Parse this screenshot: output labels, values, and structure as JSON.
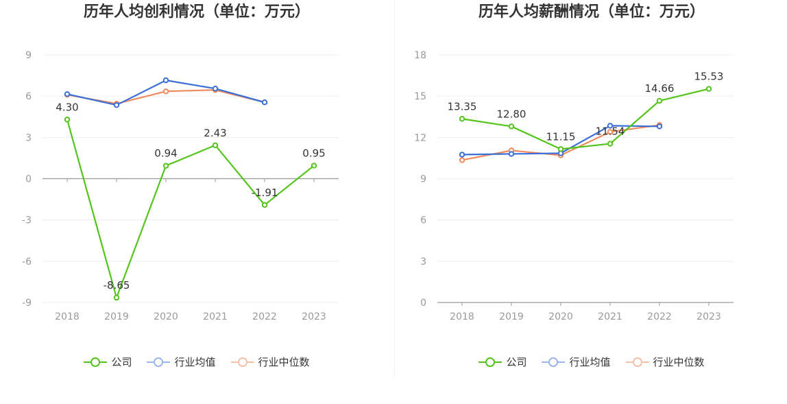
{
  "legend": {
    "company": "公司",
    "industry_avg": "行业均值",
    "industry_median": "行业中位数"
  },
  "colors": {
    "company": "#52c41a",
    "industry_avg": "#3a6fd8",
    "industry_median": "#f08a5d",
    "axis": "#999999",
    "grid": "#e9ecf5",
    "tick_text": "#999999",
    "label_text": "#333333"
  },
  "chart_data": [
    {
      "type": "line",
      "title": "历年人均创利情况（单位：万元）",
      "categories": [
        "2018",
        "2019",
        "2020",
        "2021",
        "2022",
        "2023"
      ],
      "ylim": [
        -9,
        9
      ],
      "yticks": [
        -9,
        -6,
        -3,
        0,
        3,
        6,
        9
      ],
      "ytick_labels": [
        "-9",
        "-6",
        "-3",
        "0",
        "3",
        "6",
        "9"
      ],
      "series": [
        {
          "name": "公司",
          "key": "company",
          "values": [
            4.3,
            -8.65,
            0.94,
            2.43,
            -1.91,
            0.95
          ],
          "labels": [
            "4.30",
            "-8.65",
            "0.94",
            "2.43",
            "-1.91",
            "0.95"
          ]
        },
        {
          "name": "行业均值",
          "key": "industry_avg",
          "values": [
            6.15,
            5.35,
            7.15,
            6.55,
            5.55,
            null
          ]
        },
        {
          "name": "行业中位数",
          "key": "industry_median",
          "values": [
            6.1,
            5.45,
            6.35,
            6.45,
            5.55,
            null
          ]
        }
      ]
    },
    {
      "type": "line",
      "title": "历年人均薪酬情况（单位：万元）",
      "categories": [
        "2018",
        "2019",
        "2020",
        "2021",
        "2022",
        "2023"
      ],
      "ylim": [
        0,
        18
      ],
      "yticks": [
        0,
        3,
        6,
        9,
        12,
        15,
        18
      ],
      "ytick_labels": [
        "0",
        "3",
        "6",
        "9",
        "12",
        "15",
        "18"
      ],
      "series": [
        {
          "name": "公司",
          "key": "company",
          "values": [
            13.35,
            12.8,
            11.15,
            11.54,
            14.66,
            15.53
          ],
          "labels": [
            "13.35",
            "12.80",
            "11.15",
            "11.54",
            "14.66",
            "15.53"
          ]
        },
        {
          "name": "行业均值",
          "key": "industry_avg",
          "values": [
            10.75,
            10.8,
            10.85,
            12.85,
            12.8,
            null
          ]
        },
        {
          "name": "行业中位数",
          "key": "industry_median",
          "values": [
            10.35,
            11.05,
            10.7,
            12.4,
            12.9,
            null
          ]
        }
      ]
    }
  ]
}
